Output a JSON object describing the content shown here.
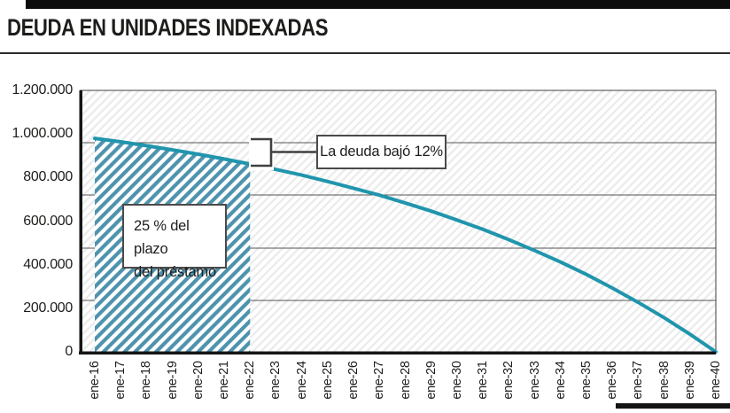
{
  "header": {
    "title": "DEUDA EN UNIDADES INDEXADAS"
  },
  "annotations": {
    "box_deuda": "La deuda bajó 12%",
    "box_plazo_line1": "25 % del plazo",
    "box_plazo_line2": "del préstamo"
  },
  "colors": {
    "curve": "#2095ad",
    "highlight_hatch": "#4e93ad",
    "background_hatch": "#ebebeb",
    "bar": "#0c0c0c",
    "grid": "#555555",
    "axis": "#151515"
  },
  "chart_data": {
    "type": "line",
    "title": "DEUDA EN UNIDADES INDEXADAS",
    "categories": [
      "ene-16",
      "ene-17",
      "ene-18",
      "ene-19",
      "ene-20",
      "ene-21",
      "ene-22",
      "ene-23",
      "ene-24",
      "ene-25",
      "ene-26",
      "ene-27",
      "ene-28",
      "ene-29",
      "ene-30",
      "ene-31",
      "ene-32",
      "ene-33",
      "ene-34",
      "ene-35",
      "ene-36",
      "ene-37",
      "ene-38",
      "ene-39",
      "ene-40"
    ],
    "series": [
      {
        "name": "Deuda en unidades indexadas",
        "values": [
          980000,
          964000,
          946000,
          927000,
          907000,
          885000,
          862000,
          837000,
          811000,
          782000,
          751000,
          719000,
          683000,
          646000,
          605000,
          562000,
          515000,
          465000,
          412000,
          355000,
          293000,
          227000,
          157000,
          81000,
          0
        ]
      }
    ],
    "y_ticks": [
      "1.200.000",
      "1.000.000",
      "800.000",
      "600.000",
      "400.000",
      "200.000",
      "0"
    ],
    "ylim": [
      0,
      1200000
    ],
    "grid": "horizontal",
    "legend": "none",
    "highlight_region": {
      "from": "ene-16",
      "to": "ene-22",
      "label": "25 % del plazo del préstamo"
    },
    "annotation": {
      "text": "La deuda bajó 12%",
      "from_value": 980000,
      "to_value": 862000,
      "at": "ene-22"
    }
  }
}
